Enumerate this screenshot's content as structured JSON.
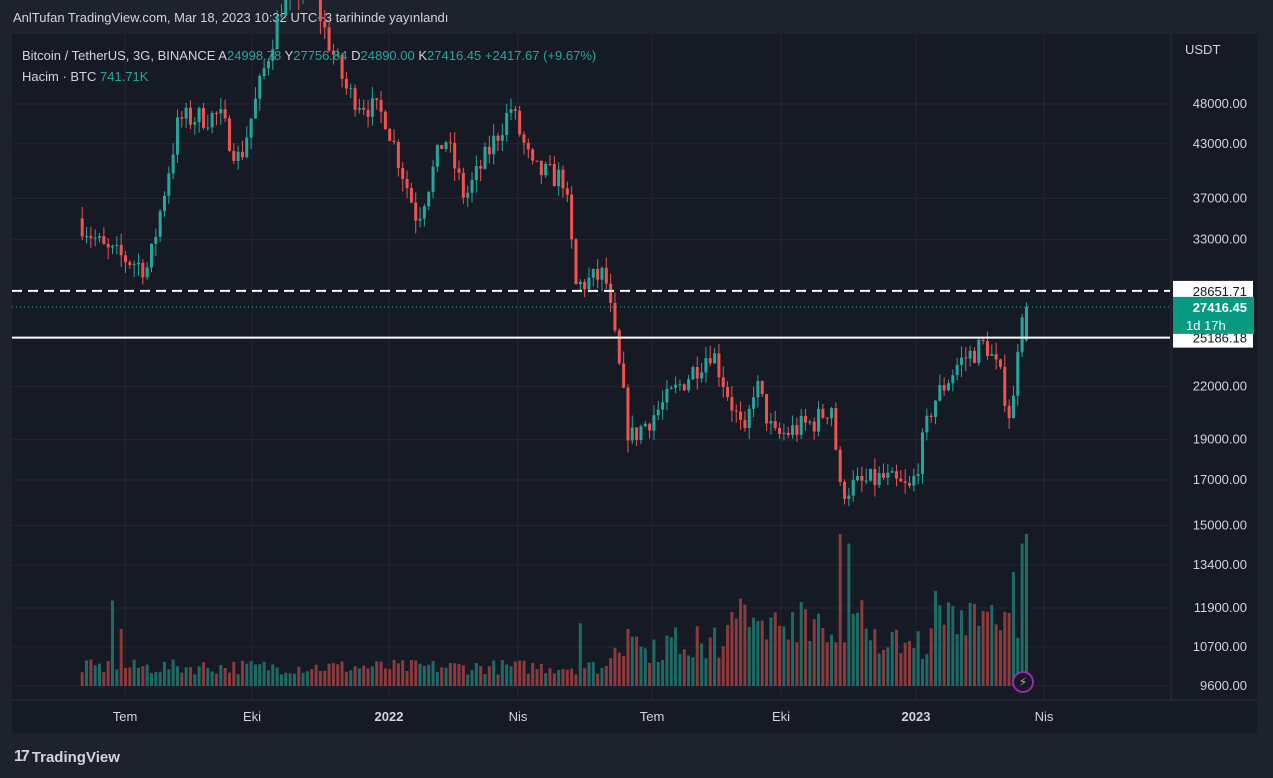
{
  "header": {
    "published": "AnlTufan TradingView.com, Mar 18, 2023 10:32 UTC+3 tarihinde yayınlandı"
  },
  "legend": {
    "symbol": "Bitcoin / TetherUS, 3G, BINANCE",
    "o_label": "A",
    "o_value": "24998.78",
    "h_label": "Y",
    "h_value": "27756.84",
    "l_label": "D",
    "l_value": "24890.00",
    "c_label": "K",
    "c_value": "27416.45",
    "change": "+2417.67 (+9.67%)",
    "volume_label": "Hacim · BTC",
    "volume_value": "741.71K"
  },
  "footer": {
    "brand": "TradingView",
    "logo": "17"
  },
  "colors": {
    "up": "#26a69a",
    "down": "#ef5350",
    "up_vol": "#1e6b66",
    "down_vol": "#8c3a3b",
    "background": "#161a25",
    "grid": "#242733",
    "price_tag": "#089981"
  },
  "chart_data": {
    "type": "candlestick",
    "title": "Bitcoin / TetherUS, 3G, BINANCE",
    "currency": "USDT",
    "price_axis_ticks": [
      "48000.00",
      "43000.00",
      "37000.00",
      "33000.00",
      "22000.00",
      "19000.00",
      "17000.00",
      "15000.00",
      "13400.00",
      "11900.00",
      "10700.00",
      "9600.00"
    ],
    "time_axis_ticks": [
      "Tem",
      "Eki",
      "2022",
      "Nis",
      "Tem",
      "Eki",
      "2023",
      "Nis"
    ],
    "horizontal_lines": [
      {
        "price": "28651.71",
        "style": "dashed"
      },
      {
        "price": "25186.18",
        "style": "solid"
      }
    ],
    "last_price": {
      "value": "27416.45",
      "countdown": "1d 17h"
    },
    "grid": true,
    "scale": "log",
    "series": [
      {
        "name": "Bitcoin / TetherUS",
        "anchors": [
          [
            "2021-06-01",
            35000
          ],
          [
            "2021-06-20",
            32000
          ],
          [
            "2021-07-20",
            30500
          ],
          [
            "2021-08-10",
            46000
          ],
          [
            "2021-09-07",
            46500
          ],
          [
            "2021-09-21",
            41000
          ],
          [
            "2021-10-20",
            63000
          ],
          [
            "2021-11-09",
            67000
          ],
          [
            "2021-11-20",
            58000
          ],
          [
            "2021-12-05",
            49500
          ],
          [
            "2021-12-31",
            46300
          ],
          [
            "2022-01-22",
            35000
          ],
          [
            "2022-02-10",
            44000
          ],
          [
            "2022-02-24",
            37000
          ],
          [
            "2022-03-28",
            47500
          ],
          [
            "2022-04-12",
            40000
          ],
          [
            "2022-05-04",
            39000
          ],
          [
            "2022-05-12",
            29000
          ],
          [
            "2022-06-01",
            30000
          ],
          [
            "2022-06-12",
            22500
          ],
          [
            "2022-06-18",
            19000
          ],
          [
            "2022-07-10",
            20800
          ],
          [
            "2022-08-14",
            24400
          ],
          [
            "2022-09-06",
            19000
          ],
          [
            "2022-09-13",
            22400
          ],
          [
            "2022-09-26",
            19100
          ],
          [
            "2022-10-25",
            20000
          ],
          [
            "2022-11-06",
            21000
          ],
          [
            "2022-11-10",
            16500
          ],
          [
            "2022-12-10",
            17100
          ],
          [
            "2022-12-30",
            16500
          ],
          [
            "2023-01-14",
            21000
          ],
          [
            "2023-02-01",
            23500
          ],
          [
            "2023-02-20",
            24800
          ],
          [
            "2023-03-03",
            22300
          ],
          [
            "2023-03-10",
            19800
          ],
          [
            "2023-03-13",
            24100
          ],
          [
            "2023-03-17",
            27416
          ]
        ]
      }
    ],
    "volume_series": {
      "name": "Hacim · BTC",
      "last_value": "741.71K",
      "spikes": [
        [
          "2021-06-22",
          0.45
        ],
        [
          "2021-06-28",
          0.3
        ],
        [
          "2022-05-12",
          0.33
        ],
        [
          "2022-06-13",
          0.3
        ],
        [
          "2022-06-16",
          0.26
        ],
        [
          "2022-11-09",
          0.8
        ],
        [
          "2022-11-13",
          0.75
        ],
        [
          "2023-01-14",
          0.5
        ],
        [
          "2023-03-07",
          0.6
        ],
        [
          "2023-03-13",
          0.75
        ],
        [
          "2023-03-16",
          0.8
        ]
      ]
    }
  }
}
